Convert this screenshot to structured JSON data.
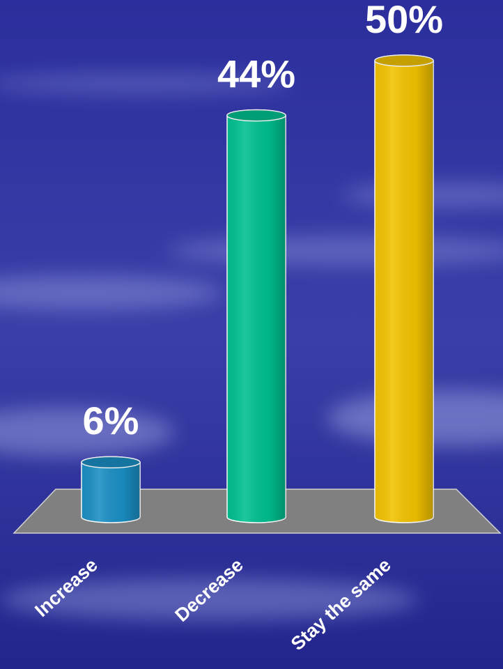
{
  "chart_data": {
    "type": "bar",
    "categories": [
      "Increase",
      "Decrease",
      "Stay the same"
    ],
    "values": [
      6,
      44,
      50
    ],
    "value_labels": [
      "6%",
      "44%",
      "50%"
    ],
    "colors": [
      "#1a8fc4",
      "#00c090",
      "#f2c200"
    ]
  }
}
